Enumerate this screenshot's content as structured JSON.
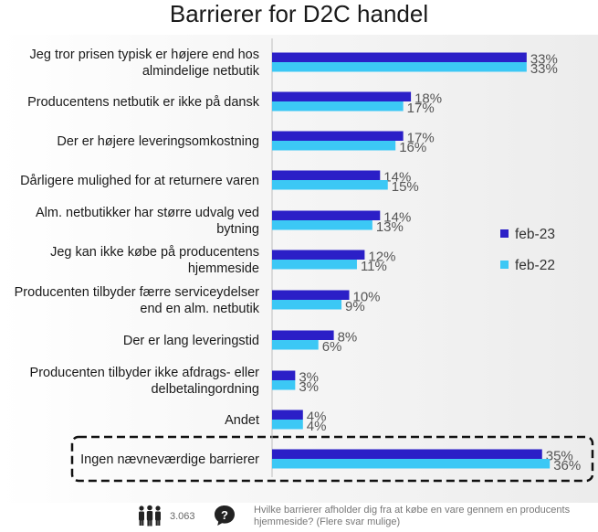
{
  "title": "Barrierer for D2C handel",
  "chart_data": {
    "type": "bar",
    "orientation": "horizontal",
    "title": "Barrierer for D2C handel",
    "categories": [
      "Jeg tror prisen typisk er højere end hos almindelige netbutik",
      "Producentens netbutik er ikke på dansk",
      "Der er højere leveringsomkostning",
      "Dårligere mulighed for at returnere varen",
      "Alm. netbutikker har større udvalg ved bytning",
      "Jeg kan ikke købe på producentens hjemmeside",
      "Producenten tilbyder færre serviceydelser end en alm. netbutik",
      "Der er lang leveringstid",
      "Producenten tilbyder ikke afdrags- eller delbetalingordning",
      "Andet",
      "Ingen nævneværdige barrierer"
    ],
    "category_lines": [
      [
        "Jeg tror prisen typisk er højere end hos",
        "almindelige netbutik"
      ],
      [
        "Producentens netbutik er ikke på dansk"
      ],
      [
        "Der er højere leveringsomkostning"
      ],
      [
        "Dårligere mulighed for at returnere varen"
      ],
      [
        "Alm. netbutikker har større udvalg ved",
        "bytning"
      ],
      [
        "Jeg kan ikke købe på producentens",
        "hjemmeside"
      ],
      [
        "Producenten tilbyder færre serviceydelser",
        "end en alm. netbutik"
      ],
      [
        "Der er lang leveringstid"
      ],
      [
        "Producenten tilbyder ikke afdrags- eller",
        "delbetalingordning"
      ],
      [
        "Andet"
      ],
      [
        "Ingen nævneværdige barrierer"
      ]
    ],
    "series": [
      {
        "name": "feb-23",
        "color": "#2b1fc7",
        "values": [
          33,
          18,
          17,
          14,
          14,
          12,
          10,
          8,
          3,
          4,
          35
        ]
      },
      {
        "name": "feb-22",
        "color": "#3cc8f5",
        "values": [
          33,
          17,
          16,
          15,
          13,
          11,
          9,
          6,
          3,
          4,
          36
        ]
      }
    ],
    "value_suffix": "%",
    "legend_position": "right",
    "highlighted_category": "Ingen nævneværdige barrierer",
    "xlim": [
      0,
      40
    ]
  },
  "footer": {
    "respondents": "3.063",
    "question": "Hvilke barrierer afholder dig fra at købe en vare gennem en producents hjemmeside? (Flere svar mulige)",
    "people_icon": "people-icon",
    "question_icon": "question-icon"
  }
}
